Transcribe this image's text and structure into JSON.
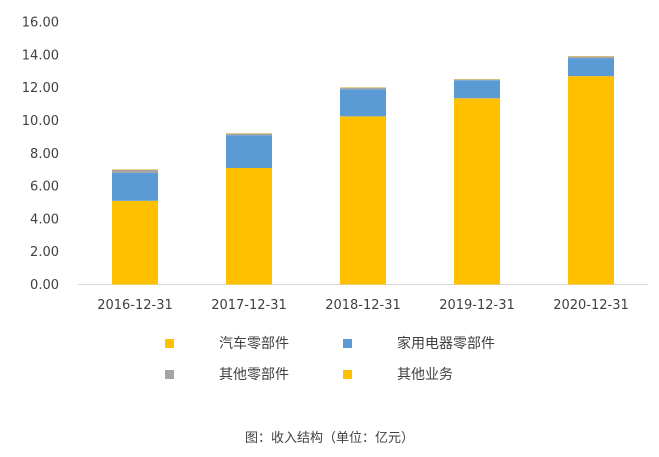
{
  "chart_data": {
    "type": "bar",
    "stacked": true,
    "categories": [
      "2016-12-31",
      "2017-12-31",
      "2018-12-31",
      "2019-12-31",
      "2020-12-31"
    ],
    "series": [
      {
        "name": "汽车零部件",
        "color": "#FFC000",
        "values": [
          5.1,
          7.1,
          10.25,
          11.35,
          12.7
        ]
      },
      {
        "name": "家用电器零部件",
        "color": "#5B9BD5",
        "values": [
          1.7,
          2.0,
          1.65,
          1.1,
          1.1
        ]
      },
      {
        "name": "其他零部件",
        "color": "#A5A5A5",
        "values": [
          0.2,
          0.1,
          0.1,
          0.05,
          0.1
        ]
      },
      {
        "name": "其他业务",
        "color": "#FFC000",
        "values": [
          0.02,
          0.02,
          0.02,
          0.02,
          0.02
        ]
      }
    ],
    "y_ticks": [
      "0.00",
      "2.00",
      "4.00",
      "6.00",
      "8.00",
      "10.00",
      "12.00",
      "14.00",
      "16.00"
    ],
    "ylim": [
      0,
      16
    ],
    "grid": false,
    "legend_position": "bottom"
  },
  "caption": "图：收入结构（单位：亿元）"
}
